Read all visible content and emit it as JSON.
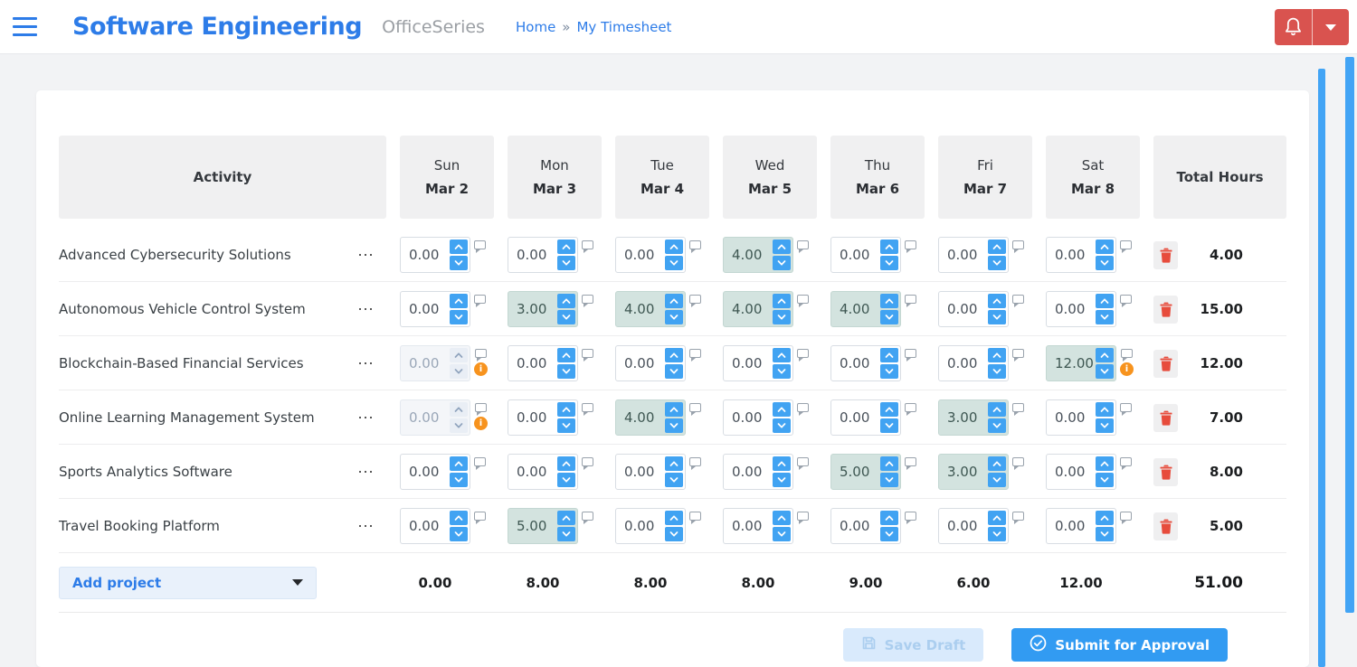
{
  "header": {
    "title": "Software Engineering",
    "product": "OfficeSeries",
    "breadcrumb": {
      "home": "Home",
      "separator": "»",
      "current": "My Timesheet"
    }
  },
  "colors": {
    "accent_blue": "#2d7ce8",
    "spinner_blue": "#41a3f2",
    "danger_red": "#d9534f",
    "highlight_teal": "#d3e3df",
    "warning_orange": "#f7931e",
    "trash_red": "#e74c3c",
    "scrollbar_blue": "#42a4f5"
  },
  "timesheet": {
    "columns": {
      "activity": "Activity",
      "total": "Total Hours"
    },
    "days": [
      {
        "label": "Sun",
        "date": "Mar 2"
      },
      {
        "label": "Mon",
        "date": "Mar 3"
      },
      {
        "label": "Tue",
        "date": "Mar 4"
      },
      {
        "label": "Wed",
        "date": "Mar 5"
      },
      {
        "label": "Thu",
        "date": "Mar 6"
      },
      {
        "label": "Fri",
        "date": "Mar 7"
      },
      {
        "label": "Sat",
        "date": "Mar 8"
      }
    ],
    "row_menu_glyph": "⋯",
    "warning_glyph": "i",
    "rows": [
      {
        "activity": "Advanced Cybersecurity Solutions",
        "total": "4.00",
        "cells": [
          {
            "value": "0.00",
            "state": "normal"
          },
          {
            "value": "0.00",
            "state": "normal"
          },
          {
            "value": "0.00",
            "state": "normal"
          },
          {
            "value": "4.00",
            "state": "filled"
          },
          {
            "value": "0.00",
            "state": "normal"
          },
          {
            "value": "0.00",
            "state": "normal"
          },
          {
            "value": "0.00",
            "state": "normal"
          }
        ]
      },
      {
        "activity": "Autonomous Vehicle Control System",
        "total": "15.00",
        "cells": [
          {
            "value": "0.00",
            "state": "normal"
          },
          {
            "value": "3.00",
            "state": "filled"
          },
          {
            "value": "4.00",
            "state": "filled"
          },
          {
            "value": "4.00",
            "state": "filled"
          },
          {
            "value": "4.00",
            "state": "filled"
          },
          {
            "value": "0.00",
            "state": "normal"
          },
          {
            "value": "0.00",
            "state": "normal"
          }
        ]
      },
      {
        "activity": "Blockchain-Based Financial Services",
        "total": "12.00",
        "cells": [
          {
            "value": "0.00",
            "state": "disabled",
            "warning": true
          },
          {
            "value": "0.00",
            "state": "normal"
          },
          {
            "value": "0.00",
            "state": "normal"
          },
          {
            "value": "0.00",
            "state": "normal"
          },
          {
            "value": "0.00",
            "state": "normal"
          },
          {
            "value": "0.00",
            "state": "normal"
          },
          {
            "value": "12.00",
            "state": "filled",
            "warning": true
          }
        ]
      },
      {
        "activity": "Online Learning Management System",
        "total": "7.00",
        "cells": [
          {
            "value": "0.00",
            "state": "disabled",
            "warning": true
          },
          {
            "value": "0.00",
            "state": "normal"
          },
          {
            "value": "4.00",
            "state": "filled"
          },
          {
            "value": "0.00",
            "state": "normal"
          },
          {
            "value": "0.00",
            "state": "normal"
          },
          {
            "value": "3.00",
            "state": "filled"
          },
          {
            "value": "0.00",
            "state": "normal"
          }
        ]
      },
      {
        "activity": "Sports Analytics Software",
        "total": "8.00",
        "cells": [
          {
            "value": "0.00",
            "state": "normal"
          },
          {
            "value": "0.00",
            "state": "normal"
          },
          {
            "value": "0.00",
            "state": "normal"
          },
          {
            "value": "0.00",
            "state": "normal"
          },
          {
            "value": "5.00",
            "state": "filled"
          },
          {
            "value": "3.00",
            "state": "filled"
          },
          {
            "value": "0.00",
            "state": "normal"
          }
        ]
      },
      {
        "activity": "Travel Booking Platform",
        "total": "5.00",
        "cells": [
          {
            "value": "0.00",
            "state": "normal"
          },
          {
            "value": "5.00",
            "state": "filled"
          },
          {
            "value": "0.00",
            "state": "normal"
          },
          {
            "value": "0.00",
            "state": "normal"
          },
          {
            "value": "0.00",
            "state": "normal"
          },
          {
            "value": "0.00",
            "state": "normal"
          },
          {
            "value": "0.00",
            "state": "normal"
          }
        ]
      }
    ],
    "footer": {
      "add_project_label": "Add project",
      "day_totals": [
        "0.00",
        "8.00",
        "8.00",
        "8.00",
        "9.00",
        "6.00",
        "12.00"
      ],
      "grand_total": "51.00"
    },
    "actions": {
      "save_draft": "Save Draft",
      "submit": "Submit for Approval"
    }
  }
}
